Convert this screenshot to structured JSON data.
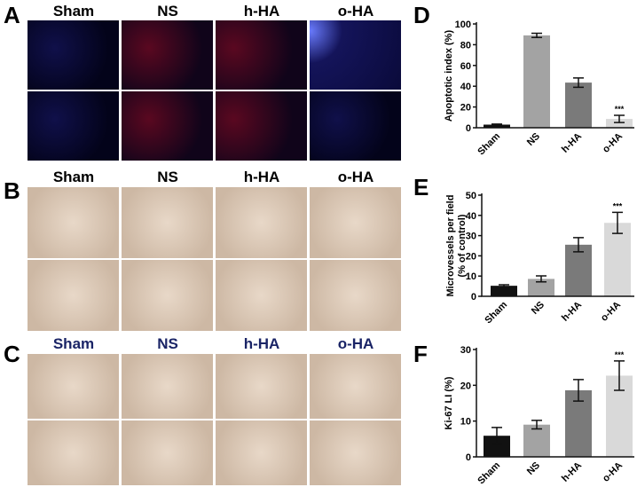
{
  "panels": {
    "A": "A",
    "B": "B",
    "C": "C",
    "D": "D",
    "E": "E",
    "F": "F"
  },
  "groups": [
    "Sham",
    "NS",
    "h-HA",
    "o-HA"
  ],
  "colors": {
    "Sham": "#111111",
    "NS": "#a3a3a3",
    "h-HA": "#7a7a7a",
    "o-HA": "#d9d9d9"
  },
  "chart_data": [
    {
      "type": "bar",
      "panel": "D",
      "categories": [
        "Sham",
        "NS",
        "h-HA",
        "o-HA"
      ],
      "values": [
        3,
        89,
        43.5,
        8.5
      ],
      "errors": [
        0.5,
        2,
        4.5,
        3.5
      ],
      "ylabel": "Apoptotic index (%)",
      "ylim": [
        0,
        100
      ],
      "yticks": [
        0,
        20,
        40,
        60,
        80,
        100
      ],
      "annotations": {
        "o-HA": "***"
      }
    },
    {
      "type": "bar",
      "panel": "E",
      "categories": [
        "Sham",
        "NS",
        "h-HA",
        "o-HA"
      ],
      "values": [
        5.2,
        8.6,
        25.5,
        36.3
      ],
      "errors": [
        0.5,
        1.5,
        3.5,
        5.2
      ],
      "ylabel": [
        "Microvessels per field",
        "(% of control)"
      ],
      "ylim": [
        0,
        50
      ],
      "yticks": [
        0,
        10,
        20,
        30,
        40,
        50
      ],
      "annotations": {
        "o-HA": "***"
      }
    },
    {
      "type": "bar",
      "panel": "F",
      "categories": [
        "Sham",
        "NS",
        "h-HA",
        "o-HA"
      ],
      "values": [
        5.9,
        9,
        18.6,
        22.7
      ],
      "errors": [
        2.3,
        1.2,
        3,
        4.1
      ],
      "ylabel": "Ki-67 LI (%)",
      "ylim": [
        0,
        30
      ],
      "yticks": [
        0,
        10,
        20,
        30
      ],
      "annotations": {
        "o-HA": "***"
      }
    }
  ]
}
